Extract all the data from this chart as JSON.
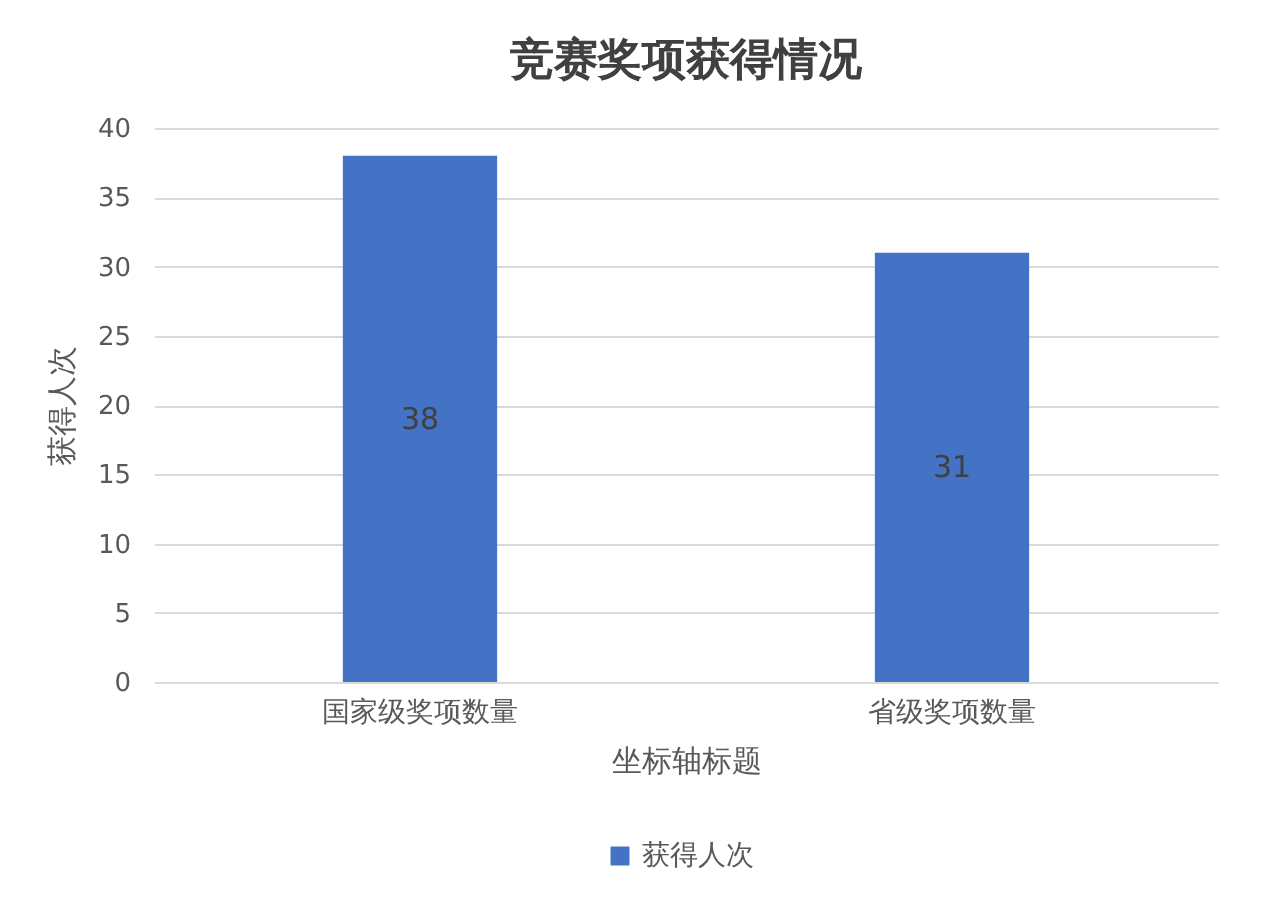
{
  "chart_data": {
    "type": "bar",
    "title": "竞赛奖项获得情况",
    "xlabel": "坐标轴标题",
    "ylabel": "获得人次",
    "categories": [
      "国家级奖项数量",
      "省级奖项数量"
    ],
    "series": [
      {
        "name": "获得人次",
        "color": "#4472c4",
        "values": [
          38,
          31
        ]
      }
    ],
    "ylim": [
      0,
      40
    ],
    "yticks": [
      0,
      5,
      10,
      15,
      20,
      25,
      30,
      35,
      40
    ],
    "grid": "y",
    "legend": "bottom",
    "data_labels": true
  }
}
